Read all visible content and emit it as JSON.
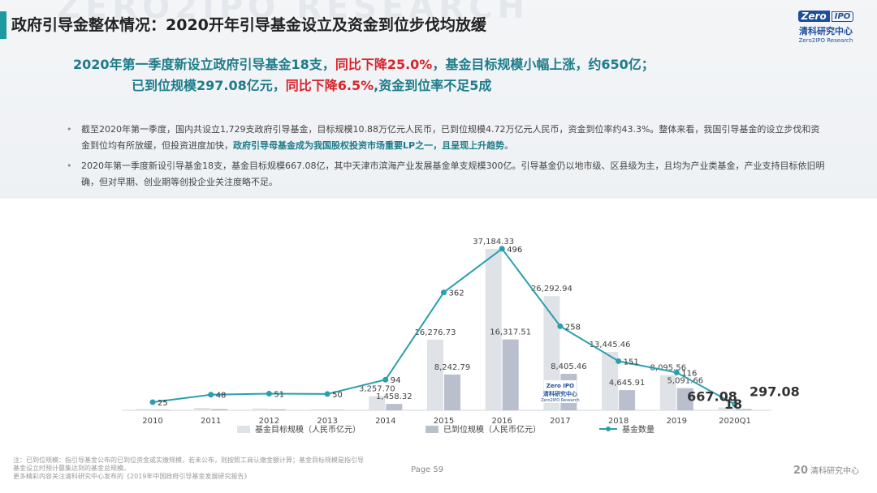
{
  "page": {
    "watermark": "ZERO2IPO RESEARCH",
    "title": "政府引导金整体情况：2020开年引导基金设立及资金到位步伐均放缓",
    "logo": {
      "mark_left": "Zero",
      "mark_right": "IPO",
      "cn": "清科研究中心",
      "en": "Zero2IPO Research"
    },
    "headline": {
      "line1_a": "2020年第一季度新设立政府引导基金18支，",
      "line1_b": "同比下降25.0%",
      "line1_c": "，基金目标规模小幅上涨，约650亿；",
      "line2_a": "已到位规模297.08亿元，",
      "line2_b": "同比下降6.5%",
      "line2_c": ",资金到位率不足5成"
    },
    "bullets": [
      {
        "text_a": "截至2020年第一季度，国内共设立1,729支政府引导基金，目标规模10.88万亿元人民币，已到位规模4.72万亿元人民币，资金到位率约43.3%。整体来看，我国引导基金的设立步伐和资金到位均有所放缓，但投资进度加快，",
        "highlight": "政府引导母基金成为我国股权投资市场重要LP之一，且呈现上升趋势",
        "text_b": "。"
      },
      {
        "text_a": "2020年第一季度新设引导基金18支，基金目标规模667.08亿，其中天津市滨海产业发展基金单支规模300亿。引导基金仍以地市级、区县级为主，且均为产业类基金，产业支持目标依旧明确，但对早期、创业期等创投企业关注度略不足。",
        "highlight": "",
        "text_b": ""
      }
    ],
    "footnote": [
      "注：已到位规模：指引导基金公布的已到位资金或实缴规模，若未公布，则按照工商认缴金额计算；基金目标规模是指引导",
      "基金设立时预计募集达到的基金总规模。",
      "更多精彩内容关注清科研究中心发布的《2019年中国政府引导基金发展研究报告》"
    ],
    "page_label": "Page 59",
    "corner_logo": {
      "num": "20",
      "text": "清科研究中心"
    }
  },
  "chart_data": {
    "type": "bar",
    "categories": [
      "2010",
      "2011",
      "2012",
      "2013",
      "2014",
      "2015",
      "2016",
      "2017",
      "2018",
      "2019",
      "2020Q1"
    ],
    "series": [
      {
        "name": "基金目标规模（人民币亿元）",
        "kind": "bar",
        "color": "#dfe3e8",
        "values": [
          320,
          560,
          430,
          240,
          3257.7,
          16276.73,
          37184.33,
          26292.94,
          13445.46,
          8095.56,
          667.08
        ],
        "labels": [
          "",
          "",
          "",
          "",
          "3,257.70",
          "16,276.73",
          "37,184.33",
          "26,292.94",
          "13,445.46",
          "8,095.56",
          "667.08"
        ]
      },
      {
        "name": "已到位规模（人民币亿元）",
        "kind": "bar",
        "color": "#b9bfcc",
        "values": [
          150,
          300,
          220,
          120,
          1458.32,
          8242.79,
          16317.51,
          8405.46,
          4645.91,
          5091.66,
          297.08
        ],
        "labels": [
          "",
          "",
          "",
          "",
          "1,458.32",
          "8,242.79",
          "16,317.51",
          "8,405.46",
          "4,645.91",
          "5,091.66",
          "297.08"
        ]
      },
      {
        "name": "基金数量",
        "kind": "line",
        "color": "#2a9fae",
        "values": [
          25,
          48,
          51,
          50,
          94,
          362,
          496,
          258,
          151,
          116,
          18
        ],
        "labels": [
          "25",
          "48",
          "51",
          "50",
          "94",
          "362",
          "496",
          "258",
          "151",
          "116",
          "18"
        ]
      }
    ],
    "ylim_bars": [
      0,
      45000
    ],
    "ylim_line": [
      0,
      600
    ],
    "legend": "bottom",
    "grid": false,
    "inline_logo": {
      "mark": "Zero IPO",
      "cn": "清科研究中心",
      "en": "Zero2IPO Research"
    }
  }
}
